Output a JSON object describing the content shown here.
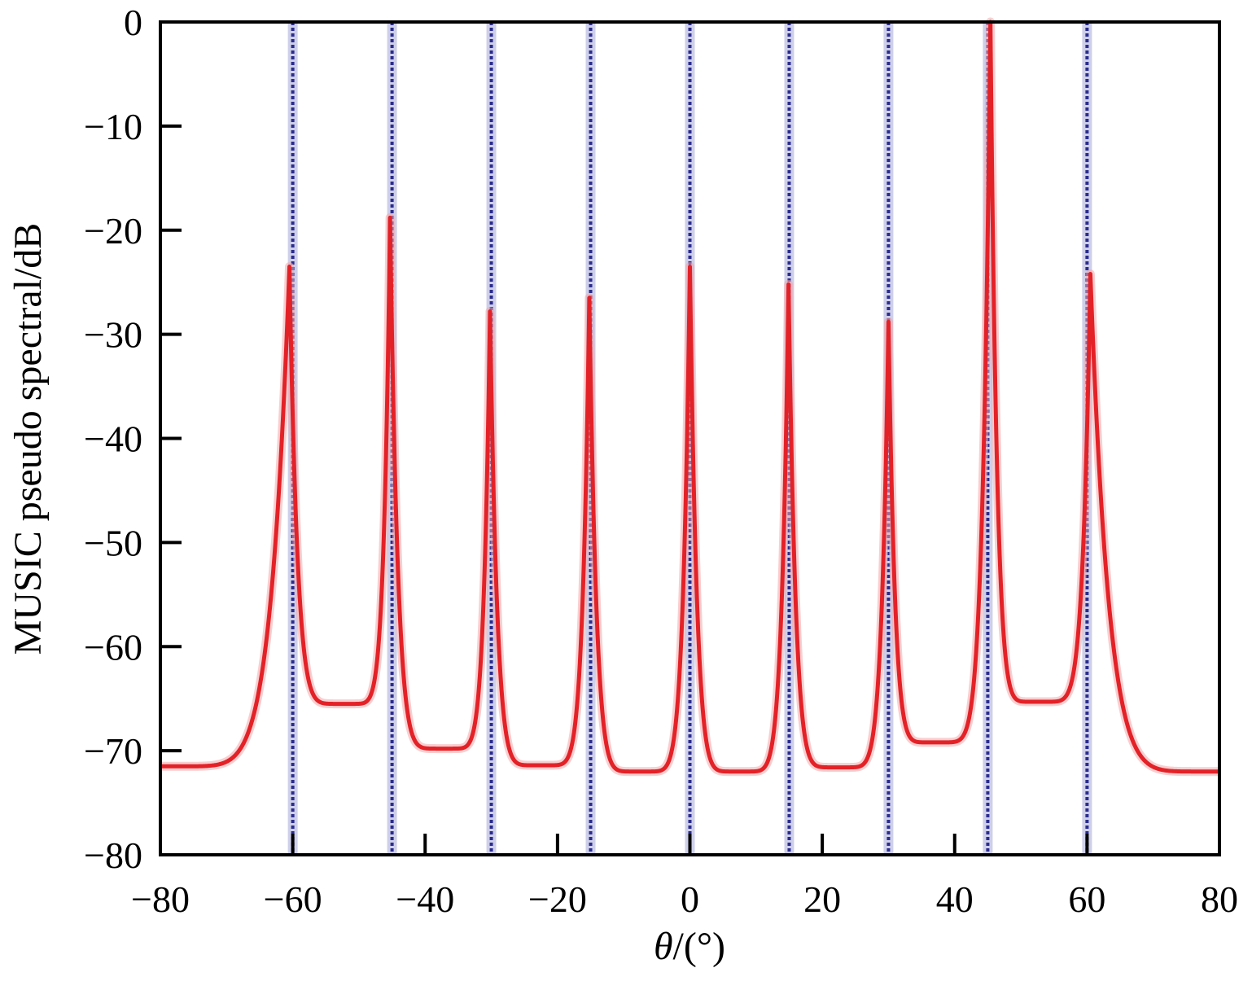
{
  "chart_data": {
    "type": "line",
    "title": "",
    "xlabel_symbol": "θ",
    "xlabel_unit": "/(°)",
    "ylabel": "MUSIC pseudo spectral/dB",
    "xlim": [
      -80,
      80
    ],
    "ylim": [
      -80,
      0
    ],
    "xticks": [
      -80,
      -60,
      -40,
      -20,
      0,
      20,
      40,
      60,
      80
    ],
    "yticks": [
      0,
      -10,
      -20,
      -30,
      -40,
      -50,
      -60,
      -70,
      -80
    ],
    "xtick_labels": [
      "−80",
      "−60",
      "−40",
      "−20",
      "0",
      "20",
      "40",
      "60",
      "80"
    ],
    "ytick_labels": [
      "0",
      "−10",
      "−20",
      "−30",
      "−40",
      "−50",
      "−60",
      "−70",
      "−80"
    ],
    "grid": false,
    "legend": "none",
    "true_directions": [
      -60,
      -45,
      -30,
      -15,
      0,
      15,
      30,
      45,
      60
    ],
    "peaks": [
      {
        "x": -60.5,
        "y": -23.5
      },
      {
        "x": -45.3,
        "y": -18.8
      },
      {
        "x": -30.2,
        "y": -27.8
      },
      {
        "x": -15.2,
        "y": -26.5
      },
      {
        "x": 0.0,
        "y": -23.5
      },
      {
        "x": 14.9,
        "y": -25.2
      },
      {
        "x": 30.0,
        "y": -28.8
      },
      {
        "x": 45.4,
        "y": 0.0
      },
      {
        "x": 60.5,
        "y": -24.2
      }
    ],
    "valleys": [
      {
        "x": -80,
        "y": -71.5
      },
      {
        "x": -52,
        "y": -65.5
      },
      {
        "x": -37,
        "y": -69.8
      },
      {
        "x": -22.5,
        "y": -71.4
      },
      {
        "x": -7.5,
        "y": -72.0
      },
      {
        "x": 7.5,
        "y": -72.0
      },
      {
        "x": 22.5,
        "y": -71.6
      },
      {
        "x": 37,
        "y": -69.2
      },
      {
        "x": 52.5,
        "y": -65.3
      },
      {
        "x": 80,
        "y": -72.0
      }
    ],
    "colors": {
      "spectrum": "#e32228",
      "true_direction_line": "#2b2c8e"
    }
  }
}
